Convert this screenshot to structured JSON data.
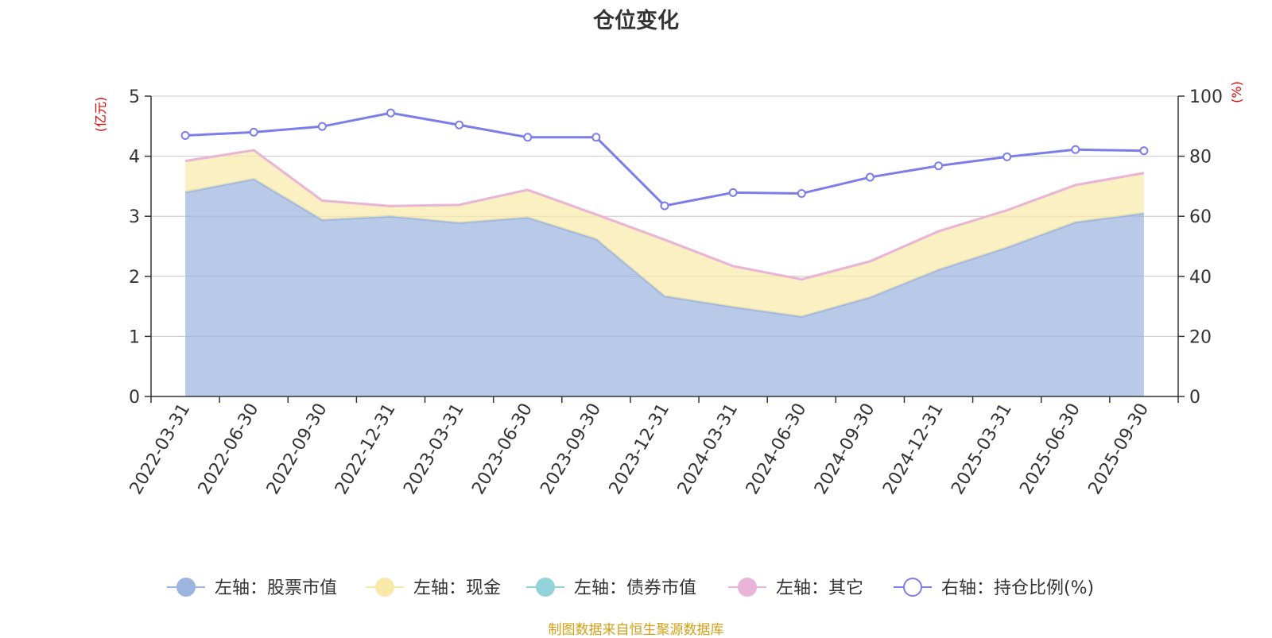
{
  "source_note": "制图数据来自恒生聚源数据库",
  "chart_data": {
    "type": "area",
    "title": "仓位变化",
    "x": [
      "2022-03-31",
      "2022-06-30",
      "2022-09-30",
      "2022-12-31",
      "2023-03-31",
      "2023-06-30",
      "2023-09-30",
      "2023-12-31",
      "2024-03-31",
      "2024-06-30",
      "2024-09-30",
      "2024-12-31",
      "2025-03-31",
      "2025-06-30",
      "2025-09-30"
    ],
    "left_axis": {
      "unit_label": "(亿元)",
      "ylim": [
        0,
        5
      ],
      "ticks": [
        "0",
        "1",
        "2",
        "3",
        "4",
        "5"
      ]
    },
    "right_axis": {
      "unit_label": "(%)",
      "ylim": [
        0,
        100
      ],
      "ticks": [
        "0",
        "20",
        "40",
        "60",
        "80",
        "100"
      ]
    },
    "series": [
      {
        "name": "左轴：股票市值",
        "axis": "left",
        "stack": true,
        "color": "#9bb4e0",
        "values": [
          3.4,
          3.62,
          2.94,
          3.0,
          2.89,
          2.98,
          2.62,
          1.67,
          1.49,
          1.33,
          1.65,
          2.11,
          2.48,
          2.9,
          3.05
        ]
      },
      {
        "name": "左轴：现金",
        "axis": "left",
        "stack": true,
        "color": "#f9e9a8",
        "values": [
          0.52,
          0.48,
          0.32,
          0.17,
          0.3,
          0.46,
          0.41,
          0.94,
          0.68,
          0.62,
          0.6,
          0.64,
          0.62,
          0.62,
          0.67
        ]
      },
      {
        "name": "左轴：债券市值",
        "axis": "left",
        "stack": true,
        "color": "#93d2d9",
        "values": [
          0,
          0,
          0,
          0,
          0,
          0,
          0,
          0,
          0,
          0,
          0,
          0,
          0,
          0,
          0
        ]
      },
      {
        "name": "左轴：其它",
        "axis": "left",
        "stack": true,
        "color": "#e9b4d8",
        "values": [
          0,
          0,
          0,
          0,
          0,
          0,
          0,
          0,
          0,
          0,
          0,
          0,
          0,
          0,
          0
        ]
      },
      {
        "name": "右轴：持仓比例(%)",
        "axis": "right",
        "stack": false,
        "color": "#7b7ee8",
        "values": [
          86.9,
          88.0,
          89.9,
          94.4,
          90.4,
          86.3,
          86.3,
          63.5,
          67.9,
          67.6,
          73.0,
          76.8,
          79.8,
          82.2,
          81.8
        ]
      }
    ],
    "legend_position": "bottom",
    "grid": true
  }
}
